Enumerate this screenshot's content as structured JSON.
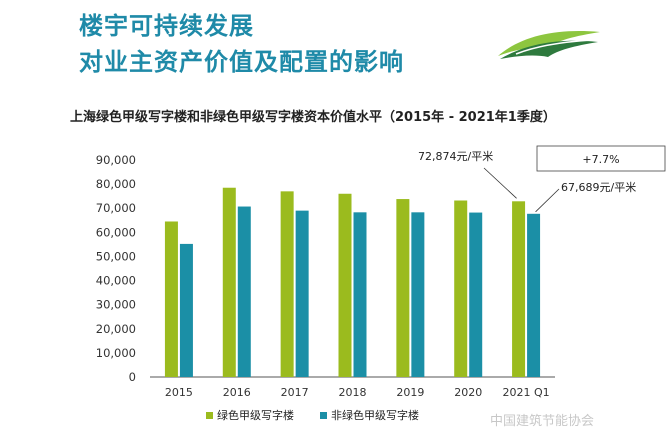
{
  "page": {
    "headline_line1": "楼宇可持续发展",
    "headline_line2": "对业主资产价值及配置的影响",
    "watermark": "中国建筑节能协会",
    "logo_icon": "green-hills-logo-icon"
  },
  "colors": {
    "headline": "#1f8aa8",
    "green_series": "#9bbb1e",
    "blue_series": "#1b8fa6",
    "logo_dark": "#2e7a3e",
    "logo_light": "#8dc63f"
  },
  "chart_data": {
    "type": "bar",
    "title": "上海绿色甲级写字楼和非绿色甲级写字楼资本价值水平（2015年 - 2021年1季度）",
    "xlabel": "",
    "ylabel": "",
    "categories": [
      "2015",
      "2016",
      "2017",
      "2018",
      "2019",
      "2020",
      "2021 Q1"
    ],
    "series": [
      {
        "name": "绿色甲级写字楼",
        "values": [
          64500,
          78500,
          77000,
          76000,
          73800,
          73200,
          72874
        ]
      },
      {
        "name": "非绿色甲级写字楼",
        "values": [
          55200,
          70700,
          69000,
          68300,
          68300,
          68200,
          67689
        ]
      }
    ],
    "ylim": [
      0,
      90000
    ],
    "yticks": [
      "0",
      "10,000",
      "20,000",
      "30,000",
      "40,000",
      "50,000",
      "60,000",
      "70,000",
      "80,000",
      "90,000"
    ],
    "grid": false,
    "legend_position": "bottom",
    "annotations": {
      "green_last": "72,874元/平米",
      "blue_last": "67,689元/平米",
      "difference": "+7.7%"
    }
  }
}
